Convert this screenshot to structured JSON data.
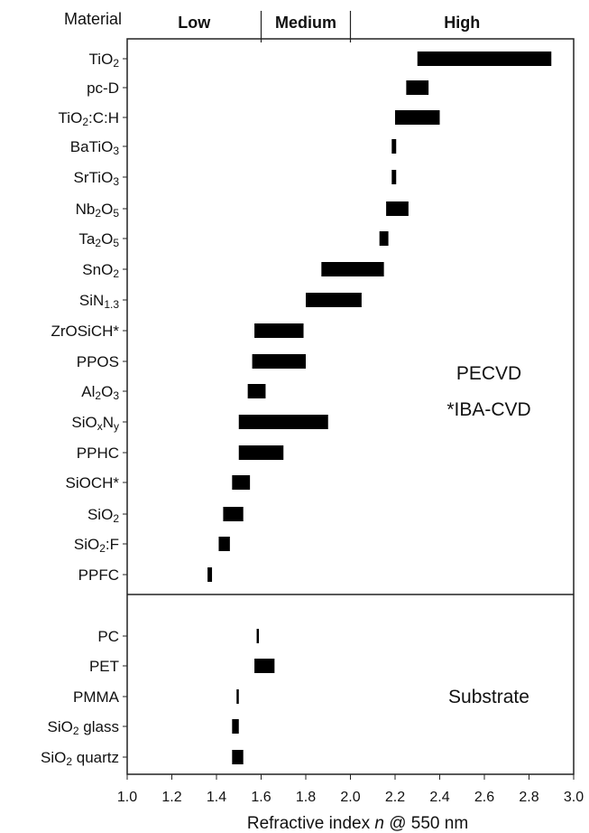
{
  "chart_data": {
    "type": "bar",
    "orientation": "horizontal-range",
    "header_label": "Material",
    "xlabel_parts": [
      "Refractive index ",
      "n",
      " @ 550 nm"
    ],
    "xlim": [
      1.0,
      3.0
    ],
    "xticks": [
      "1.0",
      "1.2",
      "1.4",
      "1.6",
      "1.8",
      "2.0",
      "2.2",
      "2.4",
      "2.6",
      "2.8",
      "3.0"
    ],
    "grid": false,
    "bar_color": "#000000",
    "regions": [
      {
        "label": "Low",
        "range": [
          1.0,
          1.6
        ]
      },
      {
        "label": "Medium",
        "range": [
          1.6,
          2.0
        ]
      },
      {
        "label": "High",
        "range": [
          2.0,
          3.0
        ]
      }
    ],
    "groups": [
      {
        "annotation": [
          "PECVD",
          "*IBA-CVD"
        ],
        "items": [
          {
            "label": [
              [
                "TiO",
                ""
              ],
              [
                "2",
                "sub"
              ]
            ],
            "range": [
              2.3,
              2.9
            ]
          },
          {
            "label": [
              [
                "pc-D",
                ""
              ]
            ],
            "range": [
              2.25,
              2.35
            ]
          },
          {
            "label": [
              [
                "TiO",
                ""
              ],
              [
                "2",
                "sub"
              ],
              [
                ":C:H",
                ""
              ]
            ],
            "range": [
              2.2,
              2.4
            ]
          },
          {
            "label": [
              [
                "BaTiO",
                ""
              ],
              [
                "3",
                "sub"
              ]
            ],
            "range": [
              2.185,
              2.205
            ]
          },
          {
            "label": [
              [
                "SrTiO",
                ""
              ],
              [
                "3",
                "sub"
              ]
            ],
            "range": [
              2.185,
              2.205
            ]
          },
          {
            "label": [
              [
                "Nb",
                ""
              ],
              [
                "2",
                "sub"
              ],
              [
                "O",
                ""
              ],
              [
                "5",
                "sub"
              ]
            ],
            "range": [
              2.16,
              2.26
            ]
          },
          {
            "label": [
              [
                "Ta",
                ""
              ],
              [
                "2",
                "sub"
              ],
              [
                "O",
                ""
              ],
              [
                "5",
                "sub"
              ]
            ],
            "range": [
              2.13,
              2.17
            ]
          },
          {
            "label": [
              [
                "SnO",
                ""
              ],
              [
                "2",
                "sub"
              ]
            ],
            "range": [
              1.87,
              2.15
            ]
          },
          {
            "label": [
              [
                "SiN",
                ""
              ],
              [
                "1.3",
                "sub"
              ]
            ],
            "range": [
              1.8,
              2.05
            ]
          },
          {
            "label": [
              [
                "ZrOSiCH*",
                ""
              ]
            ],
            "range": [
              1.57,
              1.79
            ]
          },
          {
            "label": [
              [
                "PPOS",
                ""
              ]
            ],
            "range": [
              1.56,
              1.8
            ]
          },
          {
            "label": [
              [
                "Al",
                ""
              ],
              [
                "2",
                "sub"
              ],
              [
                "O",
                ""
              ],
              [
                "3",
                "sub"
              ]
            ],
            "range": [
              1.54,
              1.62
            ]
          },
          {
            "label": [
              [
                "SiO",
                ""
              ],
              [
                "x",
                "sub"
              ],
              [
                "N",
                ""
              ],
              [
                "y",
                "sub"
              ]
            ],
            "range": [
              1.5,
              1.9
            ]
          },
          {
            "label": [
              [
                "PPHC",
                ""
              ]
            ],
            "range": [
              1.5,
              1.7
            ]
          },
          {
            "label": [
              [
                "SiOCH*",
                ""
              ]
            ],
            "range": [
              1.47,
              1.55
            ]
          },
          {
            "label": [
              [
                "SiO",
                ""
              ],
              [
                "2",
                "sub"
              ]
            ],
            "range": [
              1.43,
              1.52
            ]
          },
          {
            "label": [
              [
                "SiO",
                ""
              ],
              [
                "2",
                "sub"
              ],
              [
                ":F",
                ""
              ]
            ],
            "range": [
              1.41,
              1.46
            ]
          },
          {
            "label": [
              [
                "PPFC",
                ""
              ]
            ],
            "range": [
              1.36,
              1.38
            ]
          }
        ]
      },
      {
        "annotation": [
          "Substrate"
        ],
        "items": [
          {
            "label": [
              [
                "PC",
                ""
              ]
            ],
            "range": [
              1.58,
              1.59
            ]
          },
          {
            "label": [
              [
                "PET",
                ""
              ]
            ],
            "range": [
              1.57,
              1.66
            ]
          },
          {
            "label": [
              [
                "PMMA",
                ""
              ]
            ],
            "range": [
              1.49,
              1.5
            ]
          },
          {
            "label": [
              [
                "SiO",
                ""
              ],
              [
                "2",
                "sub"
              ],
              [
                " glass",
                ""
              ]
            ],
            "range": [
              1.47,
              1.5
            ]
          },
          {
            "label": [
              [
                "SiO",
                ""
              ],
              [
                "2",
                "sub"
              ],
              [
                " quartz",
                ""
              ]
            ],
            "range": [
              1.47,
              1.52
            ]
          }
        ]
      }
    ]
  }
}
